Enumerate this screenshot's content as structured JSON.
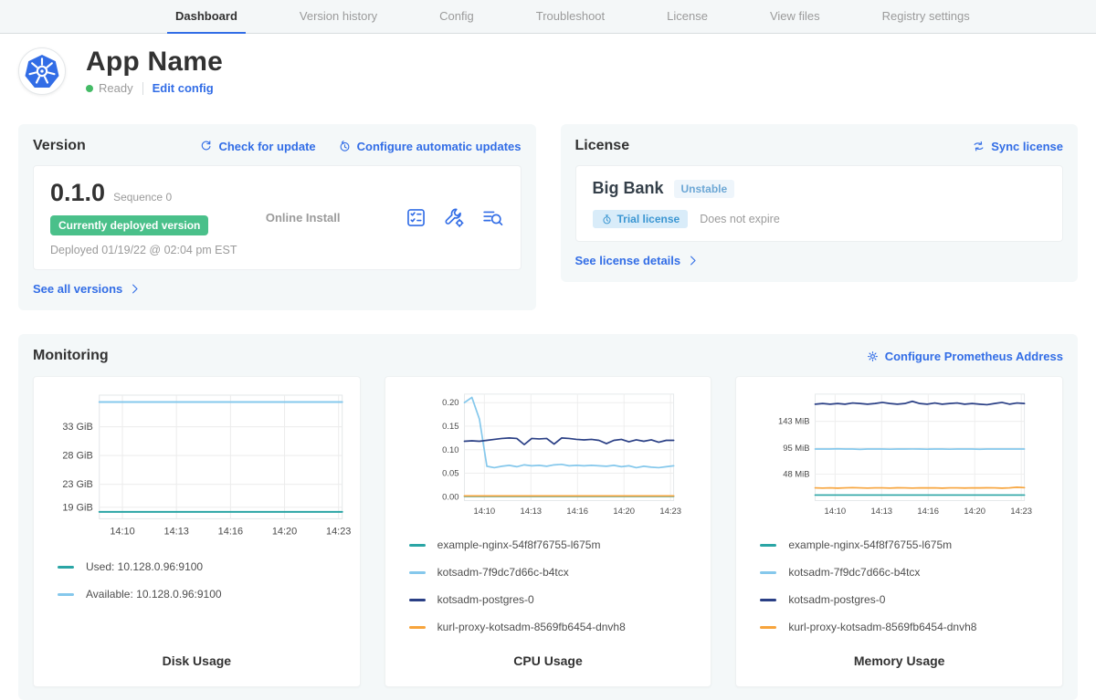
{
  "nav": {
    "tabs": [
      "Dashboard",
      "Version history",
      "Config",
      "Troubleshoot",
      "License",
      "View files",
      "Registry settings"
    ],
    "active_index": 0
  },
  "app": {
    "title": "App Name",
    "status": "Ready",
    "edit_config_label": "Edit config"
  },
  "version": {
    "heading": "Version",
    "check_update_label": "Check for update",
    "auto_updates_label": "Configure automatic updates",
    "number": "0.1.0",
    "sequence_label": "Sequence 0",
    "deployed_badge": "Currently deployed version",
    "deployed_at": "Deployed 01/19/22 @ 02:04 pm EST",
    "install_type": "Online Install",
    "action_icons": [
      "preflight-checklist-icon",
      "config-tools-icon",
      "file-search-icon"
    ],
    "see_all_label": "See all versions"
  },
  "license": {
    "heading": "License",
    "sync_label": "Sync license",
    "customer_name": "Big Bank",
    "channel_badge": "Unstable",
    "trial_badge": "Trial license",
    "expiry": "Does not expire",
    "details_label": "See license details"
  },
  "monitoring": {
    "heading": "Monitoring",
    "configure_prometheus_label": "Configure Prometheus Address"
  },
  "colors": {
    "accent_blue": "#326de6",
    "deployed_green": "#4ac08a",
    "teal": "#2aa5a5",
    "light_blue": "#85c8ec",
    "navy": "#2a3f85",
    "orange": "#f7a43c"
  },
  "chart_data": [
    {
      "type": "line",
      "title": "Disk Usage",
      "x_ticks": [
        "14:10",
        "14:13",
        "14:16",
        "14:20",
        "14:23"
      ],
      "ylim": [
        17,
        38.5
      ],
      "y_ticks": [
        {
          "label": "33 GiB",
          "value": 33
        },
        {
          "label": "28 GiB",
          "value": 28
        },
        {
          "label": "23 GiB",
          "value": 23
        },
        {
          "label": "19 GiB",
          "value": 19
        }
      ],
      "series": [
        {
          "name": "Used: 10.128.0.96:9100",
          "color": "#2aa5a5",
          "values": [
            18.2,
            18.2,
            18.2,
            18.2,
            18.2,
            18.2,
            18.2,
            18.2,
            18.2,
            18.2,
            18.2,
            18.2,
            18.2,
            18.2,
            18.2,
            18.2,
            18.2,
            18.2,
            18.2,
            18.2,
            18.2,
            18.2,
            18.2,
            18.2,
            18.2,
            18.2,
            18.2,
            18.2,
            18.2
          ]
        },
        {
          "name": "Available: 10.128.0.96:9100",
          "color": "#85c8ec",
          "values": [
            37.3,
            37.3,
            37.3,
            37.3,
            37.3,
            37.3,
            37.3,
            37.3,
            37.3,
            37.3,
            37.3,
            37.3,
            37.3,
            37.3,
            37.3,
            37.3,
            37.3,
            37.3,
            37.3,
            37.3,
            37.3,
            37.3,
            37.3,
            37.3,
            37.3,
            37.3,
            37.3,
            37.3,
            37.3
          ]
        }
      ]
    },
    {
      "type": "line",
      "title": "CPU Usage",
      "x_ticks": [
        "14:10",
        "14:13",
        "14:16",
        "14:20",
        "14:23"
      ],
      "ylim": [
        -0.008,
        0.218
      ],
      "y_ticks": [
        {
          "label": "0.20",
          "value": 0.2
        },
        {
          "label": "0.15",
          "value": 0.15
        },
        {
          "label": "0.10",
          "value": 0.1
        },
        {
          "label": "0.05",
          "value": 0.05
        },
        {
          "label": "0.00",
          "value": 0.0
        }
      ],
      "series": [
        {
          "name": "example-nginx-54f8f76755-l675m",
          "color": "#2aa5a5",
          "values": [
            0.001,
            0.001,
            0.001,
            0.001,
            0.001,
            0.001,
            0.001,
            0.001,
            0.001,
            0.001,
            0.001,
            0.001,
            0.001,
            0.001,
            0.001,
            0.001,
            0.001,
            0.001,
            0.001,
            0.001,
            0.001,
            0.001,
            0.001,
            0.001,
            0.001,
            0.001,
            0.001,
            0.001,
            0.001
          ]
        },
        {
          "name": "kotsadm-7f9dc7d66c-b4tcx",
          "color": "#85c8ec",
          "values": [
            0.2,
            0.211,
            0.165,
            0.065,
            0.062,
            0.065,
            0.067,
            0.064,
            0.068,
            0.066,
            0.067,
            0.065,
            0.068,
            0.069,
            0.066,
            0.067,
            0.066,
            0.067,
            0.066,
            0.065,
            0.067,
            0.064,
            0.066,
            0.062,
            0.065,
            0.063,
            0.062,
            0.064,
            0.066
          ]
        },
        {
          "name": "kotsadm-postgres-0",
          "color": "#2a3f85",
          "values": [
            0.118,
            0.119,
            0.118,
            0.12,
            0.122,
            0.124,
            0.125,
            0.124,
            0.111,
            0.124,
            0.123,
            0.124,
            0.112,
            0.125,
            0.124,
            0.122,
            0.121,
            0.122,
            0.12,
            0.113,
            0.12,
            0.122,
            0.117,
            0.121,
            0.118,
            0.121,
            0.116,
            0.12,
            0.12
          ]
        },
        {
          "name": "kurl-proxy-kotsadm-8569fb6454-dnvh8",
          "color": "#f7a43c",
          "values": [
            0.002,
            0.002,
            0.002,
            0.002,
            0.002,
            0.002,
            0.002,
            0.002,
            0.002,
            0.002,
            0.002,
            0.002,
            0.002,
            0.002,
            0.002,
            0.002,
            0.002,
            0.002,
            0.002,
            0.002,
            0.002,
            0.002,
            0.002,
            0.002,
            0.002,
            0.002,
            0.002,
            0.002,
            0.002
          ]
        }
      ]
    },
    {
      "type": "line",
      "title": "Memory Usage",
      "x_ticks": [
        "14:10",
        "14:13",
        "14:16",
        "14:20",
        "14:23"
      ],
      "ylim": [
        0,
        192
      ],
      "y_ticks": [
        {
          "label": "143 MiB",
          "value": 143
        },
        {
          "label": "95 MiB",
          "value": 95
        },
        {
          "label": "48 MiB",
          "value": 48
        }
      ],
      "series": [
        {
          "name": "example-nginx-54f8f76755-l675m",
          "color": "#2aa5a5",
          "values": [
            10,
            10,
            10,
            10,
            10,
            10,
            10,
            10,
            10,
            10,
            10,
            10,
            10,
            10,
            10,
            10,
            10,
            10,
            10,
            10,
            10,
            10,
            10,
            10,
            10,
            10,
            10,
            10,
            10
          ]
        },
        {
          "name": "kotsadm-7f9dc7d66c-b4tcx",
          "color": "#85c8ec",
          "values": [
            93,
            93,
            93,
            93.5,
            93,
            93,
            92.5,
            93,
            93,
            93,
            92.8,
            93,
            93,
            93.2,
            93,
            92.7,
            93,
            93,
            92.8,
            93,
            93,
            93,
            92.6,
            93,
            93,
            93.1,
            93,
            93,
            93
          ]
        },
        {
          "name": "kotsadm-postgres-0",
          "color": "#2a3f85",
          "values": [
            174,
            175,
            174,
            175,
            174,
            176,
            175,
            174,
            175,
            177,
            175,
            174,
            175,
            179,
            175,
            174,
            176,
            174,
            175,
            176,
            174,
            175,
            174,
            173,
            175,
            177,
            174,
            176,
            175
          ]
        },
        {
          "name": "kurl-proxy-kotsadm-8569fb6454-dnvh8",
          "color": "#f7a43c",
          "values": [
            23,
            22.6,
            23,
            22.4,
            23,
            23.4,
            23,
            22.6,
            23,
            23,
            22.6,
            23.2,
            23,
            22.6,
            23,
            22.8,
            23,
            22.5,
            23,
            23,
            22.7,
            23,
            22.8,
            23.2,
            23,
            22.5,
            23,
            24.2,
            23.4
          ]
        }
      ]
    }
  ]
}
